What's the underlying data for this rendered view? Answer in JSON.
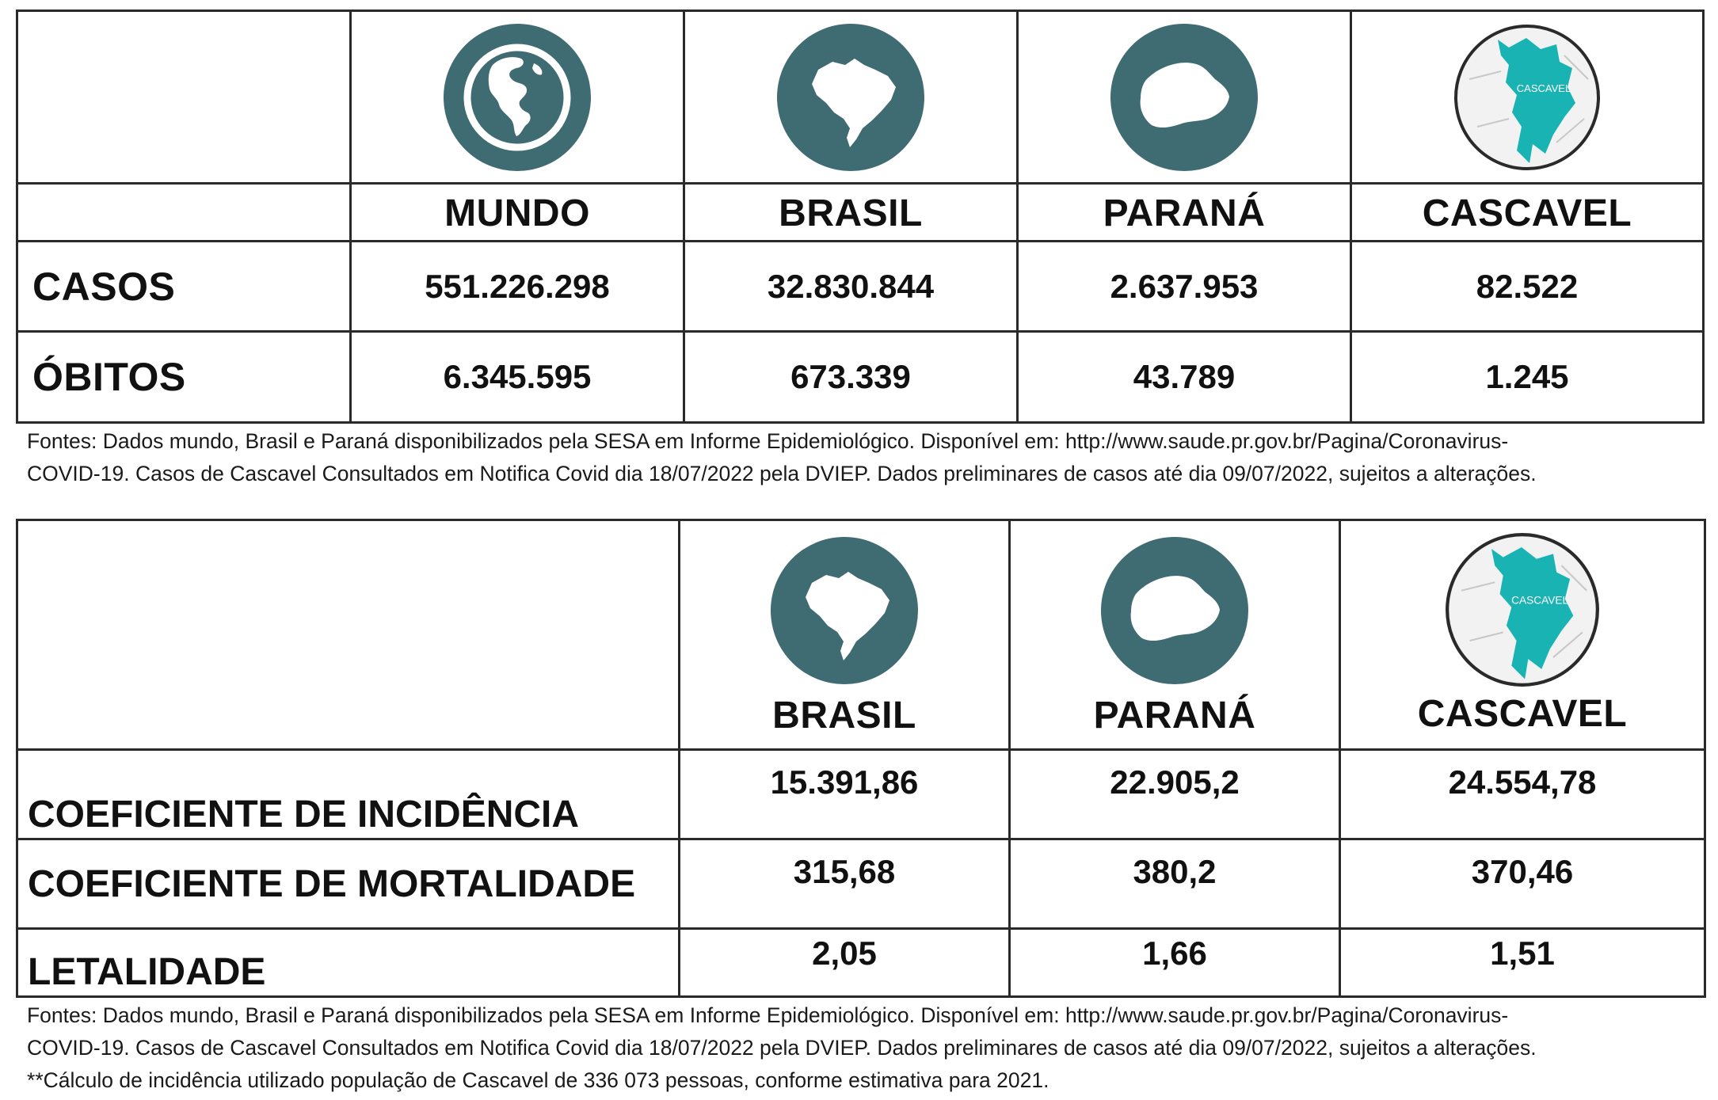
{
  "table1": {
    "icons": [
      "globe-icon",
      "brazil-map-icon",
      "parana-map-icon",
      "cascavel-map-icon"
    ],
    "map_label": "CASCAVEL",
    "headers": [
      "MUNDO",
      "BRASIL",
      "PARANÁ",
      "CASCAVEL"
    ],
    "rows": [
      {
        "label": "CASOS",
        "values": [
          "551.226.298",
          "32.830.844",
          "2.637.953",
          "82.522"
        ]
      },
      {
        "label": "ÓBITOS",
        "values": [
          "6.345.595",
          "673.339",
          "43.789",
          "1.245"
        ]
      }
    ],
    "footnote": [
      "Fontes: Dados mundo, Brasil e Paraná disponibilizados pela  SESA em Informe Epidemiológico. Disponível em: http://www.saude.pr.gov.br/Pagina/Coronavirus-",
      "COVID-19.  Casos de Cascavel Consultados em Notifica Covid dia 18/07/2022 pela DVIEP. Dados preliminares de casos até dia 09/07/2022, sujeitos a alterações."
    ]
  },
  "table2": {
    "icons": [
      "brazil-map-icon",
      "parana-map-icon",
      "cascavel-map-icon"
    ],
    "map_label": "CASCAVEL",
    "headers": [
      "BRASIL",
      "PARANÁ",
      "CASCAVEL"
    ],
    "rows": [
      {
        "label": "COEFICIENTE DE INCIDÊNCIA",
        "values": [
          "15.391,86",
          "22.905,2",
          "24.554,78"
        ]
      },
      {
        "label": "COEFICIENTE DE MORTALIDADE",
        "values": [
          "315,68",
          "380,2",
          "370,46"
        ]
      },
      {
        "label": "LETALIDADE",
        "values": [
          "2,05",
          "1,66",
          "1,51"
        ]
      }
    ],
    "footnote": [
      "Fontes: Dados mundo, Brasil e Paraná disponibilizados pela  SESA em Informe Epidemiológico. Disponível em: http://www.saude.pr.gov.br/Pagina/Coronavirus-",
      "COVID-19. Casos de Cascavel Consultados em Notifica Covid dia 18/07/2022 pela DVIEP. Dados preliminares de casos até dia 09/07/2022, sujeitos a alterações.",
      "**Cálculo de incidência utilizado população de Cascavel de 336 073 pessoas, conforme estimativa para 2021."
    ]
  },
  "colors": {
    "icon_circle": "#3f6b72",
    "icon_fill": "#ffffff",
    "cascavel_area": "#19b3b3",
    "border": "#2a2a2a"
  }
}
